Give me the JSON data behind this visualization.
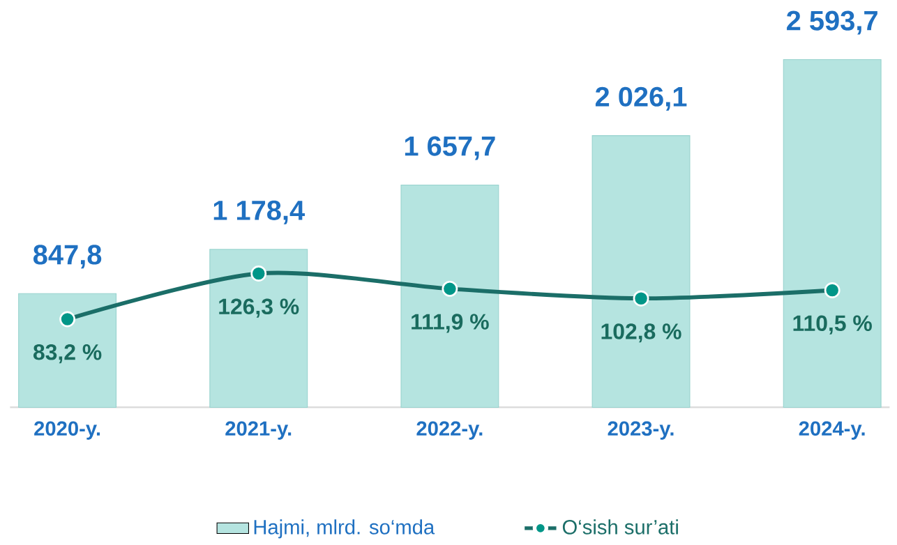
{
  "chart_data": {
    "type": "bar",
    "categories": [
      "2020-y.",
      "2021-y.",
      "2022-y.",
      "2023-y.",
      "2024-y."
    ],
    "series": [
      {
        "name": "Hajmi, mlrd. so‘mda",
        "color": "#b5e4e0",
        "values": [
          847.8,
          1178.4,
          1657.7,
          2026.1,
          2593.7
        ],
        "value_labels": [
          "847,8",
          "1 178,4",
          "1 657,7",
          "2 026,1",
          "2 593,7"
        ]
      },
      {
        "name": "O‘sish sur’ati",
        "type": "line",
        "axis": "y2",
        "color": "#1b6e68",
        "values": [
          83.2,
          126.3,
          111.9,
          102.8,
          110.5
        ],
        "value_labels": [
          "83,2 %",
          "126,3 %",
          "111,9 %",
          "102,8 %",
          "110,5 %"
        ]
      }
    ],
    "marker": "circle",
    "line_style": "solid",
    "legend": "bottom",
    "grid": false
  }
}
